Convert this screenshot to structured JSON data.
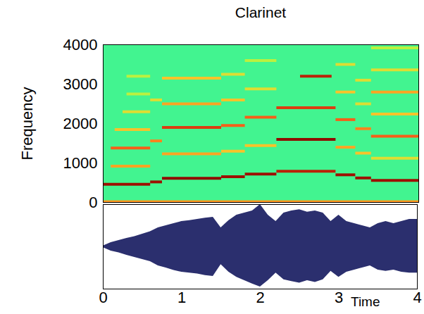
{
  "chart_data": [
    {
      "type": "spectrogram",
      "title": "Clarinet",
      "ylabel": "Frequency",
      "xlim": [
        0,
        4
      ],
      "ylim": [
        0,
        4000
      ],
      "yticks": [
        0,
        1000,
        2000,
        3000,
        4000
      ],
      "tick_labels": "y",
      "color_range": [
        0,
        1
      ],
      "background_level": 0.38,
      "harmonics": [
        {
          "t0": 0,
          "t1": 4,
          "frequency": 20,
          "level": 0.72
        },
        {
          "t0": 0,
          "t1": 0.6,
          "frequency": 460,
          "level": 0.95
        },
        {
          "t0": 0.1,
          "t1": 0.6,
          "frequency": 920,
          "level": 0.7
        },
        {
          "t0": 0.1,
          "t1": 0.6,
          "frequency": 1380,
          "level": 0.8
        },
        {
          "t0": 0.15,
          "t1": 0.6,
          "frequency": 1850,
          "level": 0.65
        },
        {
          "t0": 0.25,
          "t1": 0.6,
          "frequency": 2300,
          "level": 0.6
        },
        {
          "t0": 0.3,
          "t1": 0.6,
          "frequency": 2750,
          "level": 0.55
        },
        {
          "t0": 0.3,
          "t1": 0.6,
          "frequency": 3200,
          "level": 0.55
        },
        {
          "t0": 0.6,
          "t1": 0.75,
          "frequency": 520,
          "level": 0.95
        },
        {
          "t0": 0.6,
          "t1": 0.75,
          "frequency": 1560,
          "level": 0.75
        },
        {
          "t0": 0.6,
          "t1": 0.75,
          "frequency": 2600,
          "level": 0.6
        },
        {
          "t0": 0.75,
          "t1": 1.5,
          "frequency": 610,
          "level": 1.0
        },
        {
          "t0": 0.75,
          "t1": 1.5,
          "frequency": 1230,
          "level": 0.7
        },
        {
          "t0": 0.75,
          "t1": 1.5,
          "frequency": 1900,
          "level": 0.85
        },
        {
          "t0": 0.75,
          "t1": 1.5,
          "frequency": 2500,
          "level": 0.7
        },
        {
          "t0": 0.75,
          "t1": 1.5,
          "frequency": 3150,
          "level": 0.65
        },
        {
          "t0": 1.5,
          "t1": 1.8,
          "frequency": 650,
          "level": 0.95
        },
        {
          "t0": 1.5,
          "t1": 1.8,
          "frequency": 1300,
          "level": 0.65
        },
        {
          "t0": 1.5,
          "t1": 1.8,
          "frequency": 1950,
          "level": 0.8
        },
        {
          "t0": 1.5,
          "t1": 1.8,
          "frequency": 2600,
          "level": 0.65
        },
        {
          "t0": 1.5,
          "t1": 1.8,
          "frequency": 3250,
          "level": 0.6
        },
        {
          "t0": 1.8,
          "t1": 2.2,
          "frequency": 720,
          "level": 0.95
        },
        {
          "t0": 1.8,
          "t1": 2.2,
          "frequency": 1440,
          "level": 0.65
        },
        {
          "t0": 1.8,
          "t1": 2.2,
          "frequency": 2160,
          "level": 0.8
        },
        {
          "t0": 1.8,
          "t1": 2.2,
          "frequency": 2880,
          "level": 0.6
        },
        {
          "t0": 1.8,
          "t1": 2.2,
          "frequency": 3600,
          "level": 0.55
        },
        {
          "t0": 2.2,
          "t1": 2.95,
          "frequency": 790,
          "level": 0.9
        },
        {
          "t0": 2.2,
          "t1": 2.95,
          "frequency": 1600,
          "level": 1.0
        },
        {
          "t0": 2.2,
          "t1": 2.95,
          "frequency": 2400,
          "level": 0.85
        },
        {
          "t0": 2.5,
          "t1": 2.9,
          "frequency": 3200,
          "level": 0.9
        },
        {
          "t0": 2.95,
          "t1": 3.2,
          "frequency": 700,
          "level": 0.95
        },
        {
          "t0": 2.95,
          "t1": 3.2,
          "frequency": 1400,
          "level": 0.7
        },
        {
          "t0": 2.95,
          "t1": 3.2,
          "frequency": 2100,
          "level": 0.8
        },
        {
          "t0": 2.95,
          "t1": 3.2,
          "frequency": 2800,
          "level": 0.65
        },
        {
          "t0": 2.95,
          "t1": 3.2,
          "frequency": 3500,
          "level": 0.6
        },
        {
          "t0": 3.2,
          "t1": 3.4,
          "frequency": 620,
          "level": 0.95
        },
        {
          "t0": 3.2,
          "t1": 3.4,
          "frequency": 1250,
          "level": 0.65
        },
        {
          "t0": 3.2,
          "t1": 3.4,
          "frequency": 1870,
          "level": 0.75
        },
        {
          "t0": 3.2,
          "t1": 3.4,
          "frequency": 2500,
          "level": 0.6
        },
        {
          "t0": 3.2,
          "t1": 3.4,
          "frequency": 3100,
          "level": 0.6
        },
        {
          "t0": 3.4,
          "t1": 4,
          "frequency": 560,
          "level": 0.95
        },
        {
          "t0": 3.4,
          "t1": 4,
          "frequency": 1120,
          "level": 0.6
        },
        {
          "t0": 3.4,
          "t1": 4,
          "frequency": 1680,
          "level": 0.8
        },
        {
          "t0": 3.4,
          "t1": 4,
          "frequency": 2240,
          "level": 0.65
        },
        {
          "t0": 3.4,
          "t1": 4,
          "frequency": 2800,
          "level": 0.7
        },
        {
          "t0": 3.4,
          "t1": 4,
          "frequency": 3360,
          "level": 0.6
        },
        {
          "t0": 3.4,
          "t1": 4,
          "frequency": 3920,
          "level": 0.55
        }
      ]
    },
    {
      "type": "area",
      "xlabel": "Time",
      "xlim": [
        0,
        4
      ],
      "xticks": [
        0,
        1,
        2,
        3,
        4
      ],
      "ylim": [
        -1,
        1
      ],
      "tick_labels": "x",
      "color": "#2b2f6e",
      "x": [
        0,
        0.1,
        0.2,
        0.3,
        0.4,
        0.5,
        0.6,
        0.7,
        0.8,
        0.9,
        1.0,
        1.1,
        1.2,
        1.3,
        1.4,
        1.5,
        1.6,
        1.7,
        1.8,
        1.9,
        2.0,
        2.1,
        2.2,
        2.3,
        2.4,
        2.5,
        2.6,
        2.7,
        2.8,
        2.9,
        3.0,
        3.1,
        3.2,
        3.3,
        3.4,
        3.5,
        3.6,
        3.7,
        3.8,
        3.9,
        4.0
      ],
      "upper": [
        0.02,
        0.1,
        0.15,
        0.2,
        0.24,
        0.3,
        0.36,
        0.45,
        0.5,
        0.55,
        0.6,
        0.62,
        0.65,
        0.68,
        0.7,
        0.45,
        0.62,
        0.75,
        0.8,
        0.85,
        1.0,
        0.75,
        0.6,
        0.8,
        0.85,
        0.88,
        0.82,
        0.85,
        0.8,
        0.6,
        0.75,
        0.6,
        0.55,
        0.5,
        0.45,
        0.55,
        0.6,
        0.55,
        0.6,
        0.65,
        0.65
      ],
      "lower": [
        -0.02,
        -0.1,
        -0.14,
        -0.2,
        -0.25,
        -0.3,
        -0.35,
        -0.45,
        -0.5,
        -0.56,
        -0.6,
        -0.62,
        -0.64,
        -0.68,
        -0.7,
        -0.42,
        -0.6,
        -0.72,
        -0.8,
        -0.88,
        -0.95,
        -0.8,
        -0.62,
        -0.78,
        -0.82,
        -0.86,
        -0.8,
        -0.84,
        -0.78,
        -0.58,
        -0.72,
        -0.6,
        -0.55,
        -0.5,
        -0.45,
        -0.55,
        -0.58,
        -0.55,
        -0.6,
        -0.62,
        -0.62
      ]
    }
  ]
}
